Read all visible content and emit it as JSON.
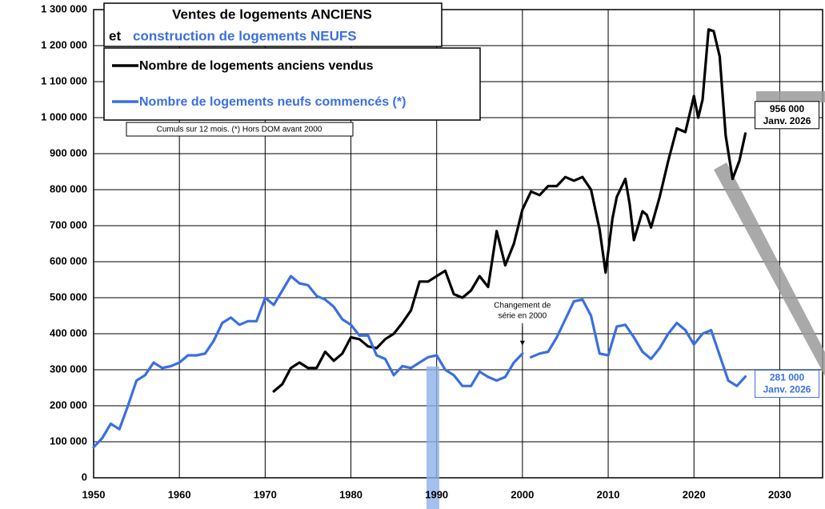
{
  "chart_data": {
    "type": "line",
    "title": "Ventes de logements ANCIENS",
    "subtitle_prefix": "et",
    "subtitle": "construction de logements NEUFS",
    "note": "Cumuls sur 12 mois. (*) Hors DOM avant 2000",
    "annotation": {
      "lines": [
        "Changement de",
        "série en 2000"
      ],
      "x": 2000,
      "y": 345000
    },
    "xlim": [
      1950,
      2035
    ],
    "xticks": [
      1950,
      1960,
      1970,
      1980,
      1990,
      2000,
      2010,
      2020,
      2030
    ],
    "ylim": [
      0,
      1300000
    ],
    "yticks": [
      0,
      {
        "value": 100000,
        "label": "100 000"
      },
      {
        "value": 200000,
        "label": "200 000"
      },
      {
        "value": 300000,
        "label": "300 000"
      },
      {
        "value": 400000,
        "label": "400 000"
      },
      {
        "value": 500000,
        "label": "500 000"
      },
      {
        "value": 600000,
        "label": "600 000"
      },
      {
        "value": 700000,
        "label": "700 000"
      },
      {
        "value": 800000,
        "label": "800 000"
      },
      {
        "value": 900000,
        "label": "900 000"
      },
      {
        "value": 1000000,
        "label": "1 000 000"
      },
      {
        "value": 1100000,
        "label": "1 100 000"
      },
      {
        "value": 1200000,
        "label": "1 200 000"
      },
      {
        "value": 1300000,
        "label": "1 300 000"
      }
    ],
    "grid": true,
    "series": [
      {
        "name": "Nombre de logements anciens vendus",
        "color": "#000000",
        "last_label": "956 000",
        "last_date": "Janv. 2026",
        "x": [
          1968,
          null,
          1971,
          1972,
          1973,
          1974,
          1975,
          1976,
          1977,
          1978,
          1979,
          1980,
          1981,
          1982,
          1983,
          1984,
          1985,
          1986,
          1987,
          1988,
          1989,
          1990,
          1991,
          1992,
          1993,
          1994,
          1995,
          1996,
          1997,
          1998,
          1999,
          2000,
          2001,
          2002,
          2003,
          2004,
          2005,
          2006,
          2007,
          2008,
          2009,
          2009.7,
          2010.5,
          2011,
          2012,
          2012.5,
          2013,
          2014,
          2014.5,
          2015,
          2016,
          2017,
          2018,
          2019,
          2020,
          2020.5,
          2021,
          2021.7,
          2022.3,
          2023,
          2023.7,
          2024.5,
          2025.3,
          2026
        ],
        "values": [
          240000,
          null,
          240000,
          260000,
          305000,
          320000,
          305000,
          305000,
          350000,
          325000,
          345000,
          390000,
          385000,
          365000,
          360000,
          385000,
          400000,
          430000,
          465000,
          545000,
          545000,
          560000,
          575000,
          510000,
          500000,
          520000,
          560000,
          530000,
          685000,
          590000,
          650000,
          745000,
          795000,
          785000,
          810000,
          810000,
          835000,
          825000,
          835000,
          800000,
          690000,
          570000,
          720000,
          780000,
          830000,
          760000,
          660000,
          740000,
          730000,
          695000,
          780000,
          880000,
          970000,
          960000,
          1060000,
          1000000,
          1050000,
          1245000,
          1240000,
          1170000,
          950000,
          830000,
          880000,
          956000
        ]
      },
      {
        "name": "Nombre de logements neufs commencés (*)",
        "color": "#3b6fe0",
        "last_label": "281 000",
        "last_date": "Janv. 2026",
        "x": [
          1950,
          1951,
          1952,
          1953,
          1954,
          1955,
          1956,
          1957,
          1958,
          1959,
          1960,
          1961,
          1962,
          1963,
          1964,
          1965,
          1966,
          1967,
          1968,
          1969,
          1970,
          1971,
          1972,
          1973,
          1974,
          1975,
          1976,
          1977,
          1978,
          1979,
          1980,
          1981,
          1982,
          1983,
          1984,
          1985,
          1986,
          1987,
          1988,
          1989,
          1990,
          1991,
          1992,
          1993,
          1994,
          1995,
          1996,
          1997,
          1998,
          1999,
          2000,
          null,
          2001,
          2002,
          2003,
          2004,
          2005,
          2006,
          2007,
          2008,
          2009,
          2010,
          2011,
          2012,
          2013,
          2014,
          2015,
          2016,
          2017,
          2018,
          2019,
          2020,
          2021,
          2022,
          2023,
          2024,
          2025,
          2026
        ],
        "values": [
          85000,
          110000,
          150000,
          135000,
          200000,
          270000,
          285000,
          320000,
          305000,
          310000,
          320000,
          340000,
          340000,
          345000,
          380000,
          430000,
          445000,
          425000,
          435000,
          435000,
          500000,
          480000,
          520000,
          560000,
          540000,
          535000,
          505000,
          495000,
          475000,
          440000,
          425000,
          395000,
          395000,
          340000,
          330000,
          285000,
          310000,
          305000,
          320000,
          335000,
          340000,
          300000,
          285000,
          255000,
          255000,
          295000,
          280000,
          270000,
          280000,
          320000,
          345000,
          null,
          335000,
          345000,
          350000,
          390000,
          440000,
          490000,
          495000,
          450000,
          345000,
          340000,
          420000,
          425000,
          390000,
          350000,
          330000,
          360000,
          400000,
          430000,
          410000,
          370000,
          400000,
          410000,
          340000,
          270000,
          255000,
          281000
        ]
      }
    ]
  }
}
